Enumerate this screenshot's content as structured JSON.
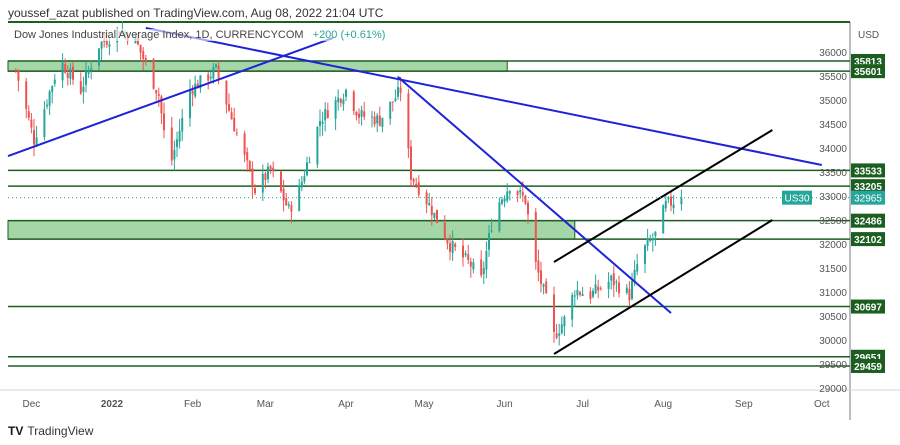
{
  "header": {
    "published": "youssef_azat published on TradingView.com, Aug 08, 2022 21:04 UTC"
  },
  "legend": {
    "symbol": "Dow Jones Industrial Average Index, 1D, CURRENCYCOM",
    "change": "+200 (+0.61%)"
  },
  "footer": {
    "brand": "TradingView"
  },
  "colors": {
    "up": "#26a69a",
    "down": "#ef5350",
    "level": "#1b5e20",
    "zone": "#a5d6a7",
    "trend_blue": "#1e22d8",
    "channel": "#000000",
    "last_price": "#26a69a"
  },
  "chart_data": {
    "type": "candlestick",
    "currency": "USD",
    "ylim": [
      28800,
      36600
    ],
    "y_ticks": [
      29000,
      29500,
      30000,
      30500,
      31000,
      31500,
      32000,
      32500,
      33000,
      33500,
      34000,
      34500,
      35000,
      35500,
      36000
    ],
    "x_ticks": [
      {
        "label": "Dec",
        "date": "2021-12-01"
      },
      {
        "label": "2022",
        "date": "2022-01-01"
      },
      {
        "label": "Feb",
        "date": "2022-02-01"
      },
      {
        "label": "Mar",
        "date": "2022-03-01"
      },
      {
        "label": "Apr",
        "date": "2022-04-01"
      },
      {
        "label": "May",
        "date": "2022-05-01"
      },
      {
        "label": "Jun",
        "date": "2022-06-01"
      },
      {
        "label": "Jul",
        "date": "2022-07-01"
      },
      {
        "label": "Aug",
        "date": "2022-08-01"
      },
      {
        "label": "Sep",
        "date": "2022-09-01"
      },
      {
        "label": "Oct",
        "date": "2022-10-01"
      }
    ],
    "close_path": [
      [
        "2021-11-25",
        35625
      ],
      [
        "2021-12-02",
        34167
      ],
      [
        "2021-12-12",
        35833
      ],
      [
        "2021-12-20",
        35208
      ],
      [
        "2021-12-27",
        36146
      ],
      [
        "2022-01-04",
        36458
      ],
      [
        "2022-01-10",
        36250
      ],
      [
        "2022-01-19",
        35104
      ],
      [
        "2022-01-23",
        33542
      ],
      [
        "2022-01-31",
        35208
      ],
      [
        "2022-02-10",
        35625
      ],
      [
        "2022-02-15",
        34792
      ],
      [
        "2022-02-25",
        33125
      ],
      [
        "2022-03-03",
        33542
      ],
      [
        "2022-03-10",
        32708
      ],
      [
        "2022-03-14",
        33125
      ],
      [
        "2022-03-22",
        34583
      ],
      [
        "2022-04-01",
        35208
      ],
      [
        "2022-04-06",
        34688
      ],
      [
        "2022-04-14",
        34583
      ],
      [
        "2022-04-22",
        35208
      ],
      [
        "2022-04-26",
        33438
      ],
      [
        "2022-05-03",
        32813
      ],
      [
        "2022-05-11",
        31979
      ],
      [
        "2022-05-19",
        31563
      ],
      [
        "2022-05-23",
        31250
      ],
      [
        "2022-05-28",
        32708
      ],
      [
        "2022-06-03",
        33229
      ],
      [
        "2022-06-09",
        32917
      ],
      [
        "2022-06-13",
        31563
      ],
      [
        "2022-06-17",
        30833
      ],
      [
        "2022-06-19",
        30000
      ],
      [
        "2022-06-24",
        30417
      ],
      [
        "2022-06-28",
        31042
      ],
      [
        "2022-07-04",
        30938
      ],
      [
        "2022-07-12",
        31250
      ],
      [
        "2022-07-19",
        30938
      ],
      [
        "2022-07-23",
        31771
      ],
      [
        "2022-07-29",
        32188
      ],
      [
        "2022-08-02",
        32813
      ],
      [
        "2022-08-08",
        32965
      ]
    ],
    "last_price": {
      "symbol": "US30",
      "value": 32965
    },
    "levels": [
      35813,
      35601,
      33533,
      33205,
      32486,
      32102,
      30697,
      29651,
      29459
    ],
    "zones": [
      {
        "from": 35601,
        "to": 35813,
        "end_date": "2022-06-02"
      },
      {
        "from": 32102,
        "to": 32486,
        "end_date": "2022-06-28"
      }
    ],
    "trendlines": [
      {
        "color": "blue",
        "p1": [
          "2021-11-22",
          33833
        ],
        "p2": [
          "2022-03-27",
          36292
        ]
      },
      {
        "color": "blue",
        "p1": [
          "2022-01-14",
          36500
        ],
        "p2": [
          "2022-10-01",
          33646
        ]
      },
      {
        "color": "blue",
        "p1": [
          "2022-04-21",
          35479
        ],
        "p2": [
          "2022-08-04",
          30562
        ]
      },
      {
        "color": "black",
        "p1": [
          "2022-06-20",
          31625
        ],
        "p2": [
          "2022-09-12",
          34375
        ]
      },
      {
        "color": "black",
        "p1": [
          "2022-06-20",
          29708
        ],
        "p2": [
          "2022-09-12",
          32500
        ]
      }
    ]
  }
}
